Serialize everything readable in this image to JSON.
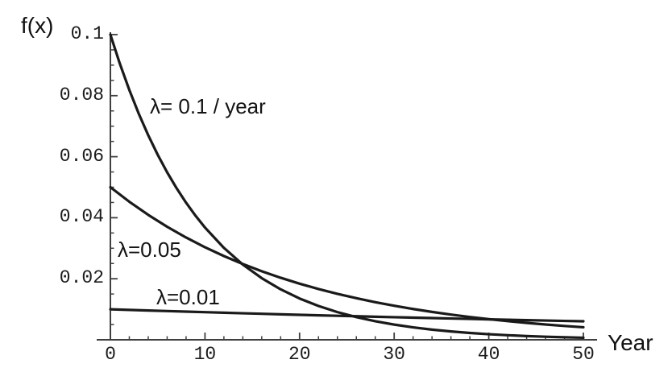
{
  "chart_data": {
    "type": "line",
    "title": "",
    "xlabel": "Year",
    "ylabel": "f(x)",
    "xlim": [
      0,
      50
    ],
    "ylim": [
      0,
      0.1
    ],
    "grid": false,
    "legend_position": "inline-annotations",
    "line_color": "#1a1a1a",
    "axis_color": "#3f3f3f",
    "x_ticks": [
      {
        "v": 0,
        "label": "0"
      },
      {
        "v": 10,
        "label": "10"
      },
      {
        "v": 20,
        "label": "20"
      },
      {
        "v": 30,
        "label": "30"
      },
      {
        "v": 40,
        "label": "40"
      },
      {
        "v": 50,
        "label": "50"
      }
    ],
    "x_minor_step": 2,
    "y_ticks": [
      {
        "v": 0.02,
        "label": "0.02"
      },
      {
        "v": 0.04,
        "label": "0.04"
      },
      {
        "v": 0.06,
        "label": "0.06"
      },
      {
        "v": 0.08,
        "label": "0.08"
      },
      {
        "v": 0.1,
        "label": "0.1"
      }
    ],
    "y_minor_step": 0.005,
    "series": [
      {
        "name": "exponential-pdf-lambda-0.1",
        "label": "λ= 0.1 / year",
        "lambda_per_year": 0.1,
        "x": [
          0,
          1,
          2,
          3,
          4,
          5,
          6,
          7,
          8,
          9,
          10,
          12,
          14,
          16,
          18,
          20,
          22,
          24,
          26,
          28,
          30,
          32,
          34,
          36,
          38,
          40,
          42,
          44,
          46,
          48,
          50
        ],
        "y": [
          0.1,
          0.090484,
          0.081873,
          0.074082,
          0.067032,
          0.060653,
          0.054881,
          0.049659,
          0.044933,
          0.040657,
          0.036788,
          0.030119,
          0.02466,
          0.02019,
          0.01653,
          0.013534,
          0.01108,
          0.009072,
          0.007427,
          0.006081,
          0.004979,
          0.004076,
          0.003337,
          0.002732,
          0.002237,
          0.001832,
          0.0015,
          0.001228,
          0.001005,
          0.000823,
          0.000674
        ]
      },
      {
        "name": "exponential-pdf-lambda-0.05",
        "label": "λ=0.05",
        "lambda_per_year": 0.05,
        "x": [
          0,
          2,
          4,
          6,
          8,
          10,
          12,
          14,
          16,
          18,
          20,
          22,
          24,
          26,
          28,
          30,
          32,
          34,
          36,
          38,
          40,
          42,
          44,
          46,
          48,
          50
        ],
        "y": [
          0.05,
          0.045242,
          0.040937,
          0.037041,
          0.033516,
          0.030327,
          0.027441,
          0.024829,
          0.022466,
          0.020328,
          0.018394,
          0.016644,
          0.01506,
          0.013627,
          0.01233,
          0.011157,
          0.010095,
          0.009134,
          0.008265,
          0.007478,
          0.006767,
          0.006123,
          0.00554,
          0.005013,
          0.004536,
          0.004104
        ]
      },
      {
        "name": "exponential-pdf-lambda-0.01",
        "label": "λ=0.01",
        "lambda_per_year": 0.01,
        "x": [
          0,
          2,
          4,
          6,
          8,
          10,
          12,
          14,
          16,
          18,
          20,
          22,
          24,
          26,
          28,
          30,
          32,
          34,
          36,
          38,
          40,
          42,
          44,
          46,
          48,
          50
        ],
        "y": [
          0.01,
          0.009802,
          0.009608,
          0.009418,
          0.009231,
          0.009048,
          0.008869,
          0.008694,
          0.008521,
          0.008353,
          0.008187,
          0.008025,
          0.007866,
          0.007711,
          0.007558,
          0.007408,
          0.007261,
          0.007118,
          0.006977,
          0.006839,
          0.006703,
          0.00657,
          0.00644,
          0.006313,
          0.006188,
          0.006065
        ]
      }
    ]
  }
}
